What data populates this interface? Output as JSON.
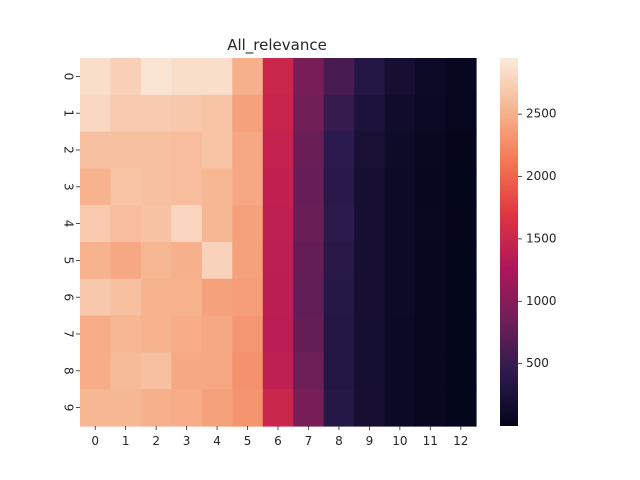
{
  "chart_data": {
    "type": "heatmap",
    "title": "All_relevance",
    "xlabel": "",
    "ylabel": "",
    "x_categories": [
      "0",
      "1",
      "2",
      "3",
      "4",
      "5",
      "6",
      "7",
      "8",
      "9",
      "10",
      "11",
      "12"
    ],
    "y_categories": [
      "0",
      "1",
      "2",
      "3",
      "4",
      "5",
      "6",
      "7",
      "8",
      "9"
    ],
    "values": [
      [
        2850,
        2750,
        2900,
        2850,
        2850,
        2500,
        1500,
        900,
        600,
        350,
        200,
        100,
        50
      ],
      [
        2800,
        2700,
        2700,
        2680,
        2650,
        2400,
        1480,
        850,
        480,
        270,
        150,
        80,
        30
      ],
      [
        2620,
        2620,
        2620,
        2600,
        2650,
        2450,
        1450,
        800,
        420,
        230,
        120,
        60,
        20
      ],
      [
        2520,
        2650,
        2620,
        2600,
        2550,
        2450,
        1420,
        780,
        390,
        200,
        100,
        50,
        15
      ],
      [
        2700,
        2600,
        2640,
        2780,
        2550,
        2400,
        1400,
        800,
        430,
        210,
        110,
        55,
        20
      ],
      [
        2520,
        2450,
        2550,
        2500,
        2760,
        2400,
        1380,
        760,
        380,
        200,
        100,
        50,
        15
      ],
      [
        2680,
        2620,
        2520,
        2520,
        2400,
        2380,
        1370,
        740,
        360,
        190,
        100,
        50,
        15
      ],
      [
        2480,
        2550,
        2520,
        2480,
        2450,
        2330,
        1360,
        760,
        350,
        180,
        90,
        45,
        15
      ],
      [
        2480,
        2580,
        2620,
        2450,
        2450,
        2300,
        1400,
        820,
        350,
        180,
        90,
        45,
        15
      ],
      [
        2550,
        2550,
        2500,
        2480,
        2400,
        2320,
        1500,
        900,
        360,
        200,
        90,
        45,
        15
      ]
    ],
    "color_range": [
      0,
      2950
    ],
    "colorbar_ticks": [
      500,
      1000,
      1500,
      2000,
      2500
    ],
    "colormap": "rocket",
    "colormap_stops": [
      "#03051a",
      "#2b1a4d",
      "#701f57",
      "#ad1759",
      "#e13342",
      "#f37651",
      "#f6b48f",
      "#faebdd"
    ],
    "legend": "colorbar-right",
    "grid": false
  }
}
